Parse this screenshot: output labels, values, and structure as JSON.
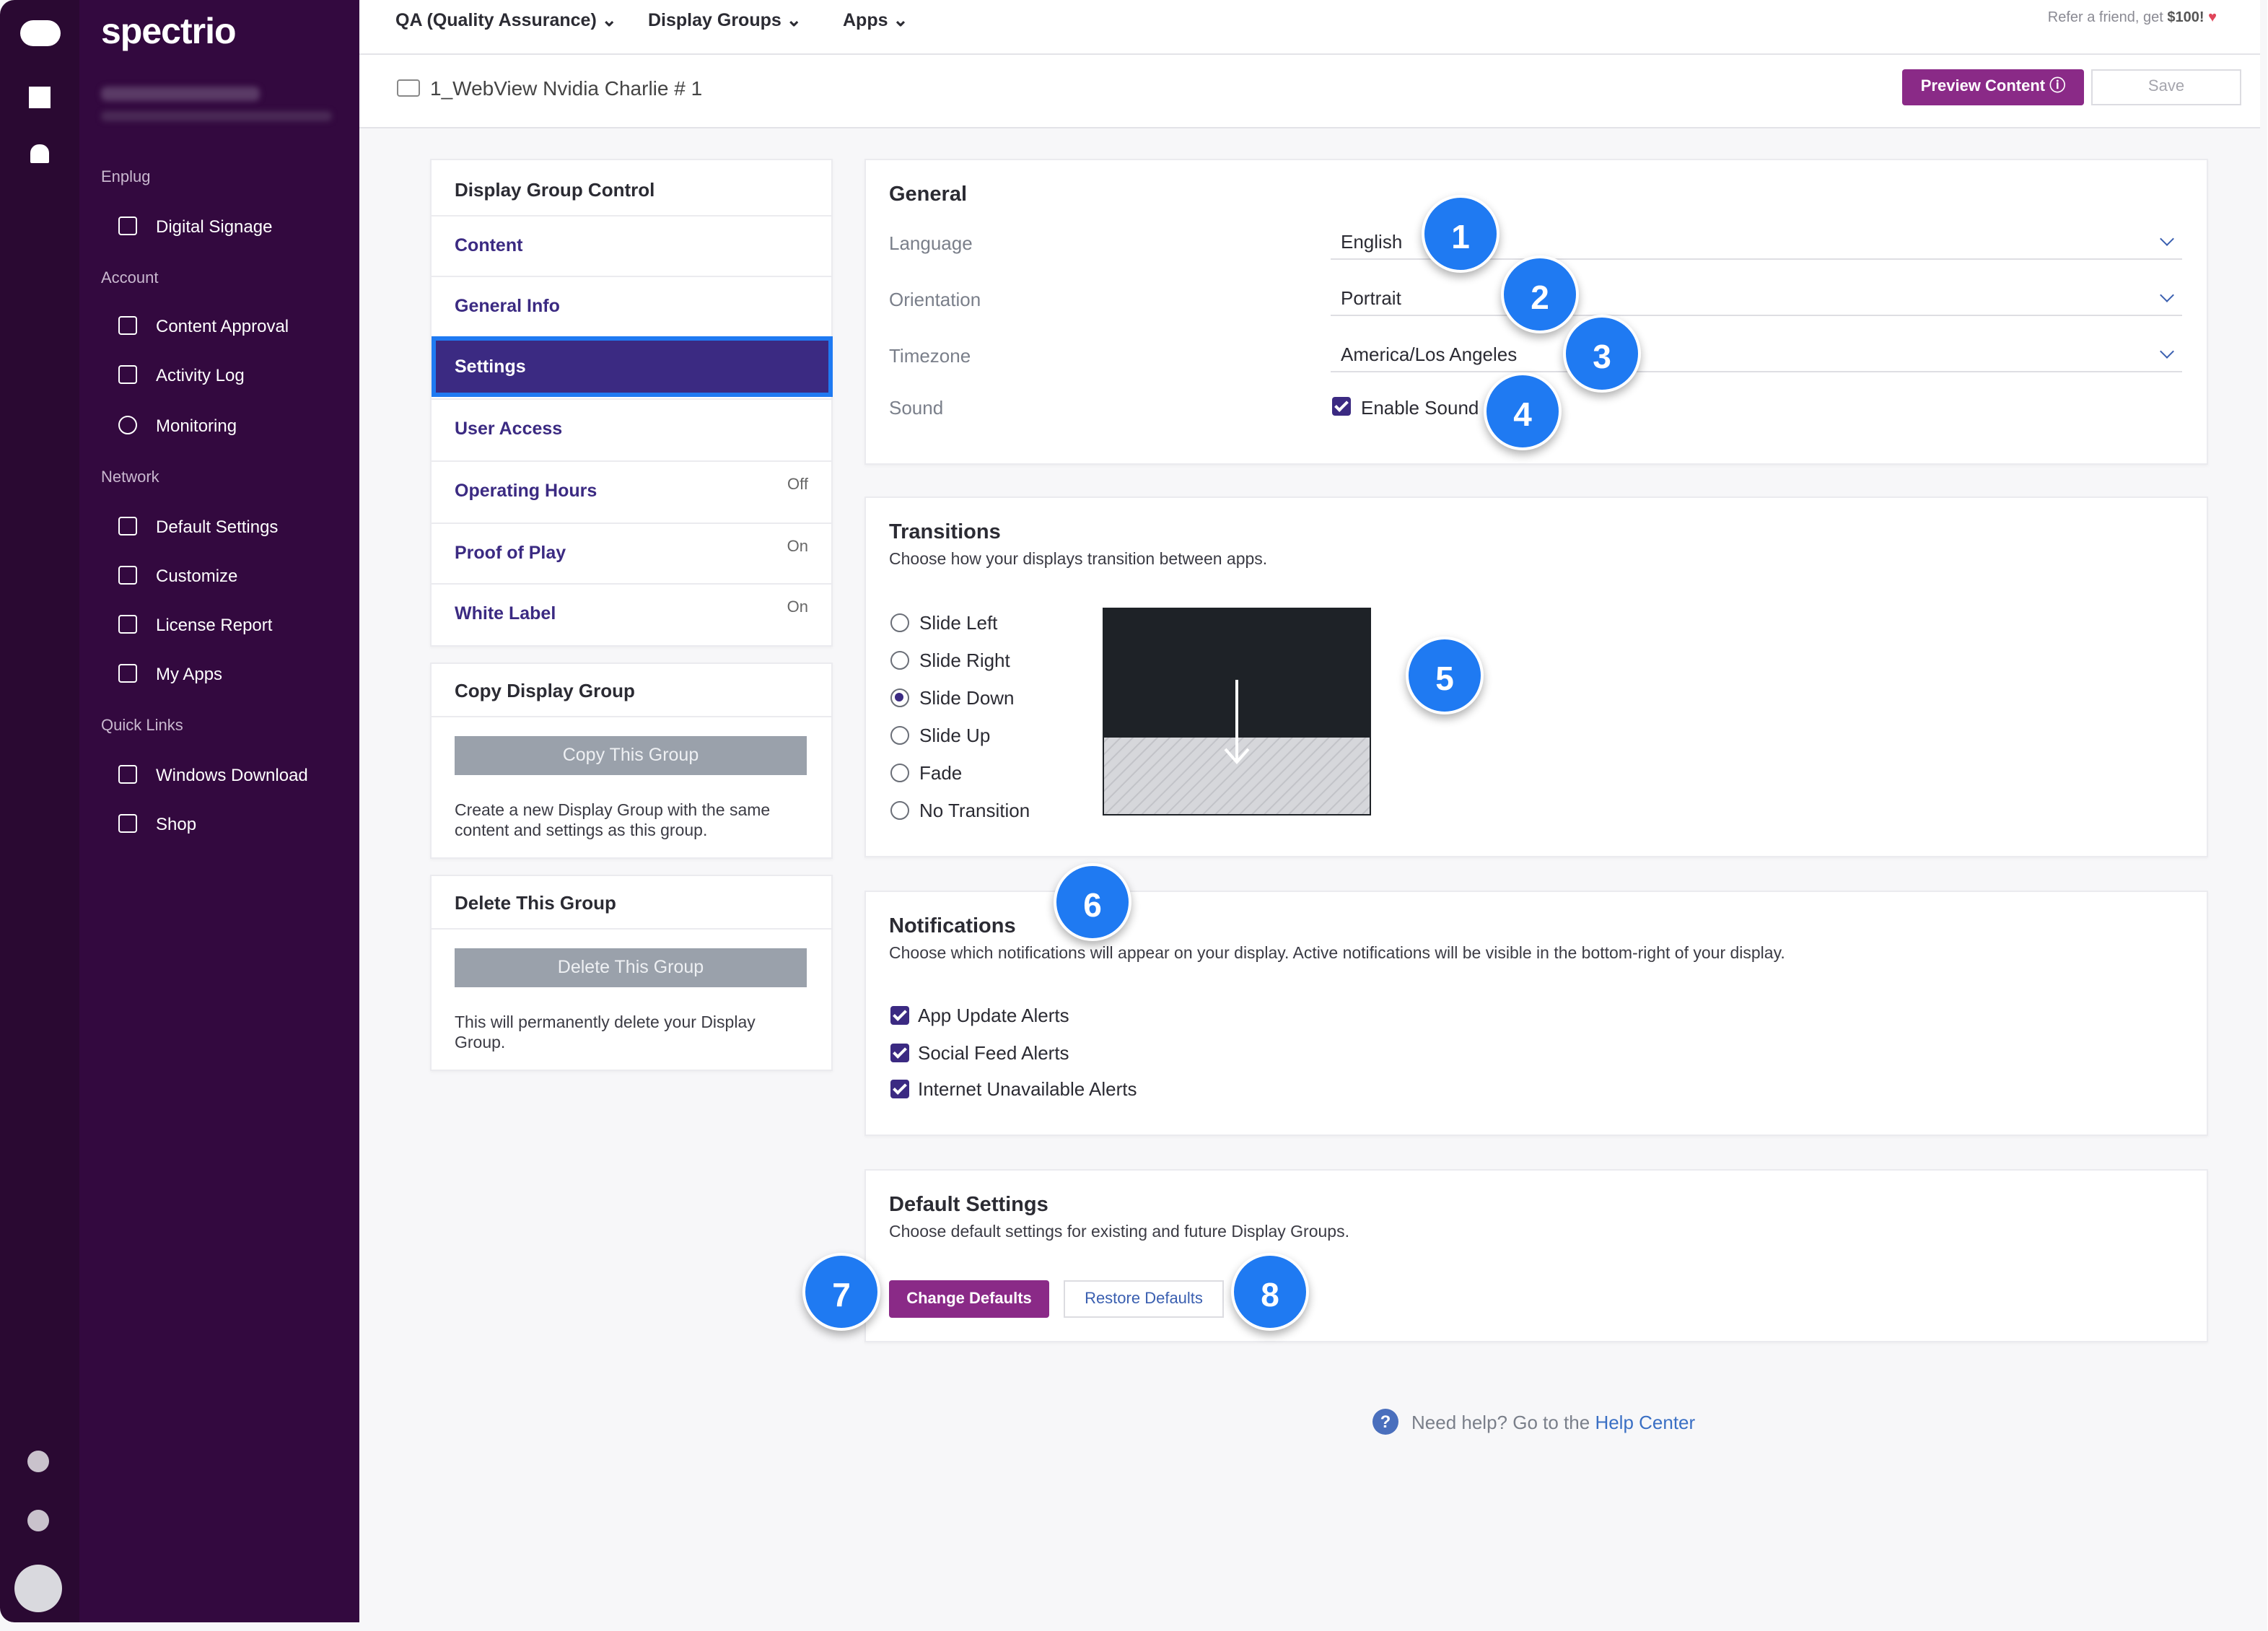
{
  "sidebar": {
    "brand": "spectrio",
    "sections": [
      {
        "title": "Enplug",
        "items": [
          "Digital Signage"
        ]
      },
      {
        "title": "Account",
        "items": [
          "Content Approval",
          "Activity Log",
          "Monitoring"
        ]
      },
      {
        "title": "Network",
        "items": [
          "Default Settings",
          "Customize",
          "License Report",
          "My Apps"
        ]
      },
      {
        "title": "Quick Links",
        "items": [
          "Windows Download",
          "Shop"
        ]
      }
    ]
  },
  "topbar": {
    "menus": [
      "QA (Quality Assurance)",
      "Display Groups",
      "Apps"
    ],
    "referral": "Refer a friend, get",
    "referral_amount": "$100!"
  },
  "header": {
    "page_title": "1_WebView Nvidia Charlie # 1",
    "preview_button": "Preview Content",
    "save_button": "Save"
  },
  "left_panel": {
    "title": "Display Group Control",
    "nav": [
      {
        "label": "Content"
      },
      {
        "label": "General Info"
      },
      {
        "label": "Settings"
      },
      {
        "label": "User Access"
      },
      {
        "label": "Operating Hours",
        "status": "Off"
      },
      {
        "label": "Proof of Play",
        "status": "On"
      },
      {
        "label": "White Label",
        "status": "On"
      }
    ]
  },
  "copy_group": {
    "title": "Copy Display Group",
    "button": "Copy This Group",
    "description": "Create a new Display Group with the same content and settings as this group."
  },
  "delete_group": {
    "title": "Delete This Group",
    "button": "Delete This Group",
    "description": "This will permanently delete your Display Group."
  },
  "general": {
    "title": "General",
    "fields": [
      {
        "label": "Language",
        "value": "English"
      },
      {
        "label": "Orientation",
        "value": "Portrait"
      },
      {
        "label": "Timezone",
        "value": "America/Los Angeles"
      }
    ],
    "sound": {
      "label": "Sound",
      "option": "Enable Sound"
    }
  },
  "transitions": {
    "title": "Transitions",
    "description": "Choose how your displays transition between apps.",
    "options": [
      "Slide Left",
      "Slide Right",
      "Slide Down",
      "Slide Up",
      "Fade",
      "No Transition"
    ]
  },
  "notifications": {
    "title": "Notifications",
    "description": "Choose which notifications will appear on your display. Active notifications will be visible in the bottom-right of your display.",
    "options": [
      "App Update Alerts",
      "Social Feed Alerts",
      "Internet Unavailable Alerts"
    ]
  },
  "default_settings": {
    "title": "Default Settings",
    "description": "Choose default settings for existing and future Display Groups.",
    "change_button": "Change Defaults",
    "restore_button": "Restore Defaults"
  },
  "help": {
    "text": "Need help? Go to the",
    "link": "Help Center"
  },
  "callouts": [
    "1",
    "2",
    "3",
    "4",
    "5",
    "6",
    "7",
    "8"
  ]
}
